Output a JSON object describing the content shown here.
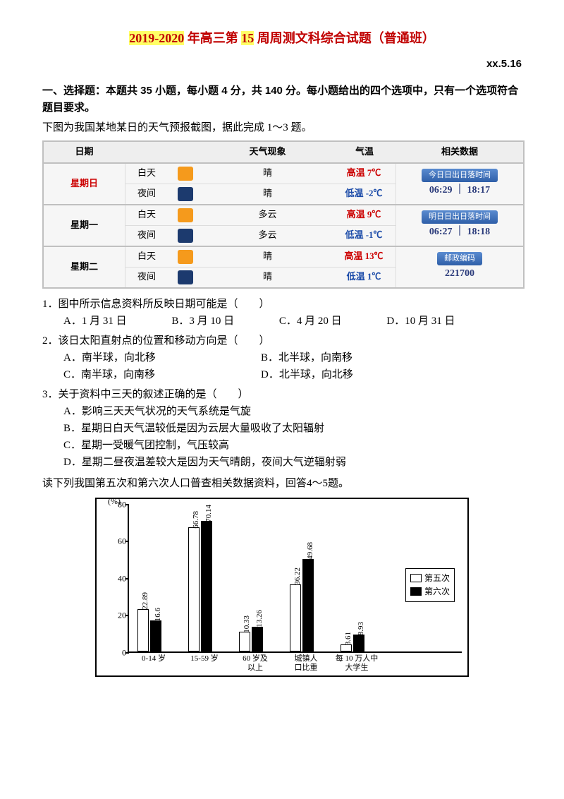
{
  "title_parts": [
    "2019-2020",
    " 年高三第 ",
    "15",
    " 周周测文科综合试题（普通班）"
  ],
  "date_right": "xx.5.16",
  "section_head": "一、选择题：本题共 35 小题，每小题 4 分，共 140 分。每小题给出的四个选项中，只有一个选项符合题目要求。",
  "intro": "下图为我国某地某日的天气预报截图，据此完成 1～3 题。",
  "weather": {
    "headers": [
      "日期",
      "天气现象",
      "气温",
      "相关数据"
    ],
    "rows": [
      {
        "day": "星期日",
        "day_color": "red",
        "periods": [
          {
            "name": "白天",
            "icon_bg": "#f59a1c",
            "phen": "晴",
            "temp_label": "高温",
            "temp": "7℃",
            "temp_cls": "high"
          },
          {
            "name": "夜间",
            "icon_bg": "#1c3a6e",
            "phen": "晴",
            "temp_label": "低温",
            "temp": "-2℃",
            "temp_cls": "low"
          }
        ],
        "chip": "今日日出日落时间",
        "val": "06:29 ｜ 18:17"
      },
      {
        "day": "星期一",
        "day_color": "black",
        "periods": [
          {
            "name": "白天",
            "icon_bg": "#f59a1c",
            "phen": "多云",
            "temp_label": "高温",
            "temp": "9℃",
            "temp_cls": "high"
          },
          {
            "name": "夜间",
            "icon_bg": "#1c3a6e",
            "phen": "多云",
            "temp_label": "低温",
            "temp": "-1℃",
            "temp_cls": "low"
          }
        ],
        "chip": "明日日出日落时间",
        "val": "06:27 ｜ 18:18"
      },
      {
        "day": "星期二",
        "day_color": "black",
        "periods": [
          {
            "name": "白天",
            "icon_bg": "#f59a1c",
            "phen": "晴",
            "temp_label": "高温",
            "temp": "13℃",
            "temp_cls": "high"
          },
          {
            "name": "夜间",
            "icon_bg": "#1c3a6e",
            "phen": "晴",
            "temp_label": "低温",
            "temp": "1℃",
            "temp_cls": "low"
          }
        ],
        "chip": "邮政编码",
        "val": "221700"
      }
    ]
  },
  "q1": {
    "stem": "1．图中所示信息资料所反映日期可能是（　　）",
    "a": "A．1 月 31 日",
    "b": "B．3 月 10 日",
    "c": "C．4 月 20 日",
    "d": "D．10 月 31 日"
  },
  "q2": {
    "stem": "2．该日太阳直射点的位置和移动方向是（　　）",
    "a": "A．南半球，向北移",
    "b": "B．北半球，向南移",
    "c": "C．南半球，向南移",
    "d": "D．北半球，向北移"
  },
  "q3": {
    "stem": "3．关于资料中三天的叙述正确的是（　　）",
    "a": "A．影响三天天气状况的天气系统是气旋",
    "b": "B．星期日白天气温较低是因为云层大量吸收了太阳辐射",
    "c": "C．星期一受暖气团控制，气压较高",
    "d": "D．星期二昼夜温差较大是因为天气晴朗，夜间大气逆辐射弱"
  },
  "sub_intro": "读下列我国第五次和第六次人口普查相关数据资料，回答4～5题。",
  "chart": {
    "ylim": [
      0,
      80
    ],
    "yticks": [
      0,
      20,
      40,
      60,
      80
    ],
    "pct_label": "(%)",
    "legend": [
      "第五次",
      "第六次"
    ],
    "categories": [
      "0-14 岁",
      "15-59 岁",
      "60 岁及\n以上",
      "城镇人\n口比重",
      "每 10 万人中\n大学生"
    ],
    "series5": [
      22.89,
      66.78,
      10.33,
      36.22,
      3.61
    ],
    "series6": [
      16.6,
      70.14,
      13.26,
      49.68,
      8.93
    ],
    "labels5": [
      "22.89",
      "66.78",
      "10.33",
      "36.22",
      "3.61"
    ],
    "labels6": [
      "16.6",
      "70.14",
      "13.26",
      "49.68",
      "8.93"
    ],
    "bar_white": "#ffffff",
    "bar_black": "#000000"
  }
}
